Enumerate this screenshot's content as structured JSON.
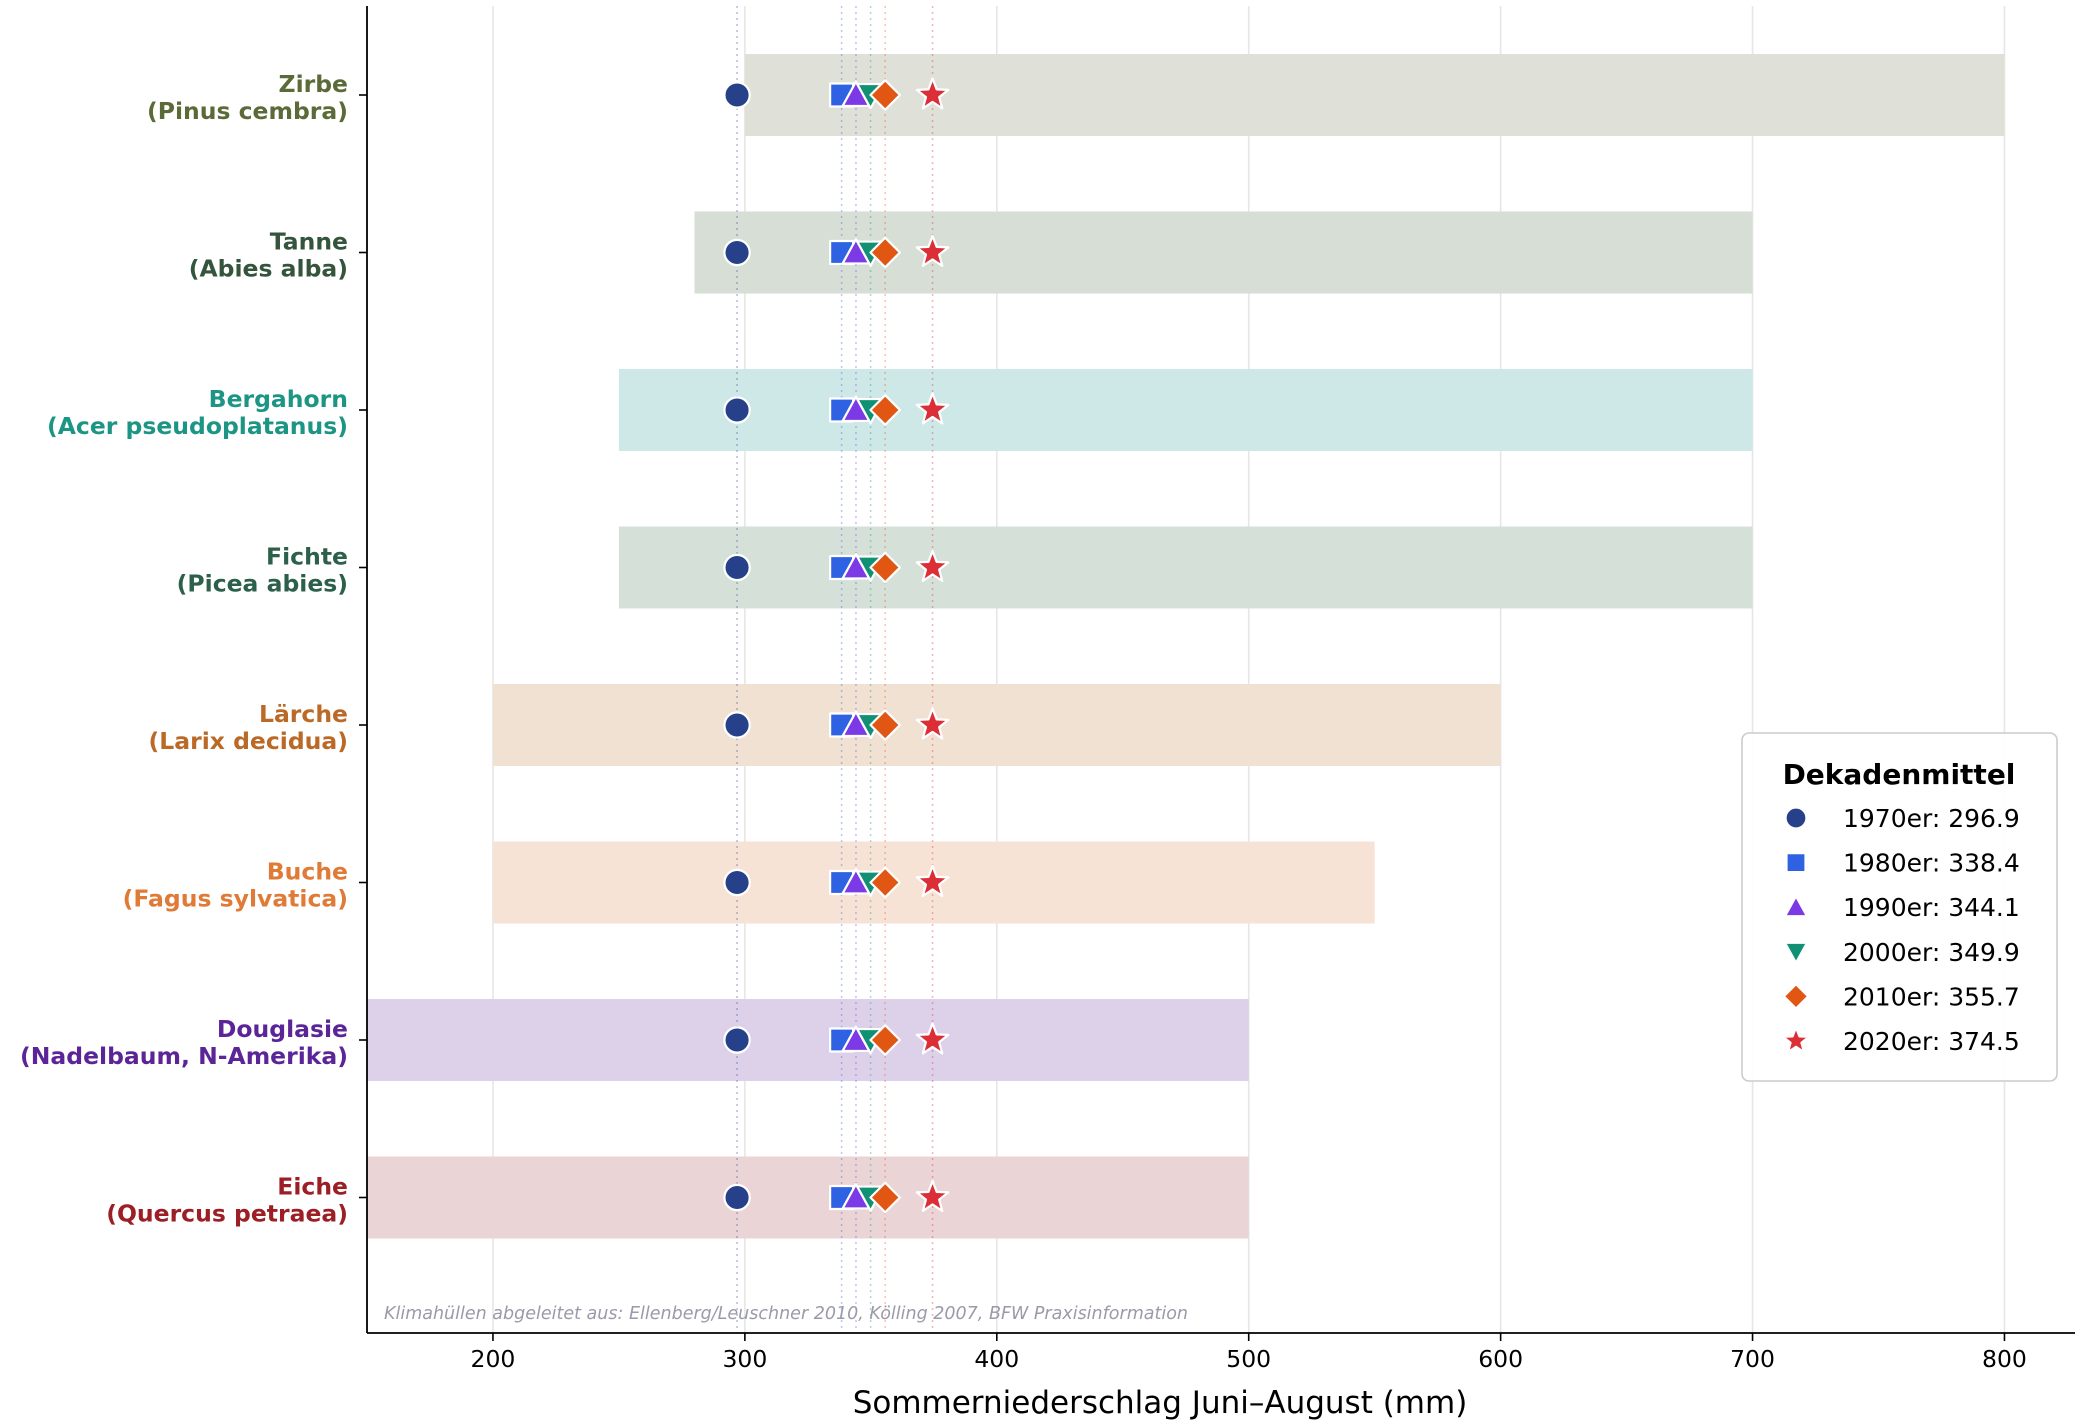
{
  "chart_data": {
    "type": "range-dot",
    "xlabel": "Sommerniederschlag Juni–August (mm)",
    "xlim": [
      150,
      828
    ],
    "xticks": [
      200,
      300,
      400,
      500,
      600,
      700,
      800
    ],
    "grid": "vertical",
    "note": "Klimahüllen abgeleitet aus: Ellenberg/Leuschner 2010, Kölling 2007, BFW Praxisinformation",
    "species": [
      {
        "name": "Zirbe",
        "latin": "(Pinus cembra)",
        "range": [
          300,
          800
        ],
        "color": "#5a6b38",
        "band_color": "#dfe1d8"
      },
      {
        "name": "Tanne",
        "latin": "(Abies alba)",
        "range": [
          280,
          700
        ],
        "color": "#34553c",
        "band_color": "#d6ded5"
      },
      {
        "name": "Bergahorn",
        "latin": "(Acer pseudoplatanus)",
        "range": [
          250,
          700
        ],
        "color": "#1c9585",
        "band_color": "#cee8e7"
      },
      {
        "name": "Fichte",
        "latin": "(Picea abies)",
        "range": [
          250,
          700
        ],
        "color": "#2c604a",
        "band_color": "#d5e0d9"
      },
      {
        "name": "Lärche",
        "latin": "(Larix decidua)",
        "range": [
          200,
          600
        ],
        "color": "#ba6a26",
        "band_color": "#f0e1d3"
      },
      {
        "name": "Buche",
        "latin": "(Fagus sylvatica)",
        "range": [
          200,
          550
        ],
        "color": "#e07a37",
        "band_color": "#f7e3d6"
      },
      {
        "name": "Douglasie",
        "latin": "(Nadelbaum, N-Amerika)",
        "range": [
          150,
          500
        ],
        "color": "#5b2598",
        "band_color": "#ddd1ea"
      },
      {
        "name": "Eiche",
        "latin": "(Quercus petraea)",
        "range": [
          150,
          500
        ],
        "color": "#9b1f24",
        "band_color": "#ead4d5"
      }
    ],
    "series": [
      {
        "name": "1970er: 296.9",
        "decade": "1970er",
        "value": 296.9,
        "marker": "circle",
        "color": "#26418a"
      },
      {
        "name": "1980er: 338.4",
        "decade": "1980er",
        "value": 338.4,
        "marker": "square",
        "color": "#2f62e3"
      },
      {
        "name": "1990er: 344.1",
        "decade": "1990er",
        "value": 344.1,
        "marker": "triangle-up",
        "color": "#7b3ae6"
      },
      {
        "name": "2000er: 349.9",
        "decade": "2000er",
        "value": 349.9,
        "marker": "triangle-down",
        "color": "#109173"
      },
      {
        "name": "2010er: 355.7",
        "decade": "2010er",
        "value": 355.7,
        "marker": "diamond",
        "color": "#e25613"
      },
      {
        "name": "2020er: 374.5",
        "decade": "2020er",
        "value": 374.5,
        "marker": "star",
        "color": "#db2e37"
      }
    ],
    "legend": {
      "title": "Dekadenmittel",
      "placement": "center-right"
    }
  }
}
